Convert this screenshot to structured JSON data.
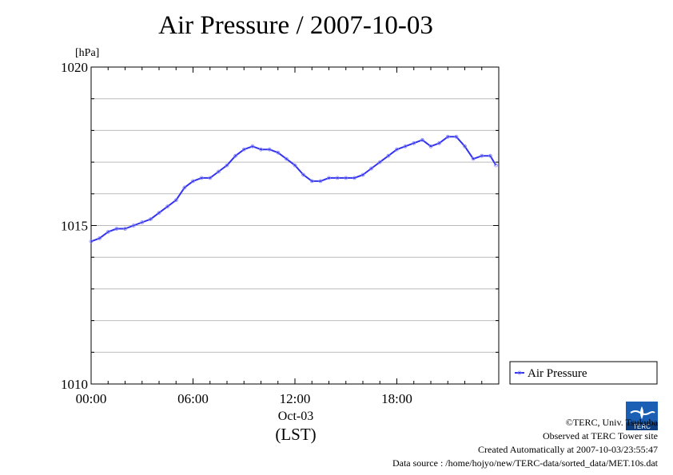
{
  "chart_data": {
    "type": "line",
    "title": "Air Pressure / 2007-10-03",
    "ylabel": "[hPa]",
    "xlabel": "(LST)",
    "date_label": "Oct-03",
    "ylim": [
      1010,
      1020
    ],
    "xlim_hours": [
      0,
      24
    ],
    "y_ticks": [
      "1010",
      "1015",
      "1020"
    ],
    "x_ticks": [
      "00:00",
      "06:00",
      "12:00",
      "18:00"
    ],
    "grid": "horizontal every 1 hPa",
    "legend": "right, below plot",
    "series": [
      {
        "name": "Air Pressure",
        "color": "#3333ee",
        "marker": "open-circle",
        "x": [
          "00:00",
          "00:30",
          "01:00",
          "01:30",
          "02:00",
          "02:30",
          "03:00",
          "03:30",
          "04:00",
          "04:30",
          "05:00",
          "05:30",
          "06:00",
          "06:30",
          "07:00",
          "07:30",
          "08:00",
          "08:30",
          "09:00",
          "09:30",
          "10:00",
          "10:30",
          "11:00",
          "11:30",
          "12:00",
          "12:30",
          "13:00",
          "13:30",
          "14:00",
          "14:30",
          "15:00",
          "15:30",
          "16:00",
          "16:30",
          "17:00",
          "17:30",
          "18:00",
          "18:30",
          "19:00",
          "19:30",
          "20:00",
          "20:30",
          "21:00",
          "21:30",
          "22:00",
          "22:30",
          "23:00",
          "23:30",
          "23:50"
        ],
        "values": [
          1014.5,
          1014.6,
          1014.8,
          1014.9,
          1014.9,
          1015.0,
          1015.1,
          1015.2,
          1015.4,
          1015.6,
          1015.8,
          1016.2,
          1016.4,
          1016.5,
          1016.5,
          1016.7,
          1016.9,
          1017.2,
          1017.4,
          1017.5,
          1017.4,
          1017.4,
          1017.3,
          1017.1,
          1016.9,
          1016.6,
          1016.4,
          1016.4,
          1016.5,
          1016.5,
          1016.5,
          1016.5,
          1016.6,
          1016.8,
          1017.0,
          1017.2,
          1017.4,
          1017.5,
          1017.6,
          1017.7,
          1017.5,
          1017.6,
          1017.8,
          1017.8,
          1017.5,
          1017.1,
          1017.2,
          1017.2,
          1016.9
        ]
      }
    ]
  },
  "logo_text": "TERC",
  "credits": [
    "©TERC, Univ. Tsukuba",
    "Observed at TERC Tower site",
    "Created Automatically at 2007-10-03/23:55:47",
    "Data source : /home/hojyo/new/TERC-data/sorted_data/MET.10s.dat"
  ]
}
